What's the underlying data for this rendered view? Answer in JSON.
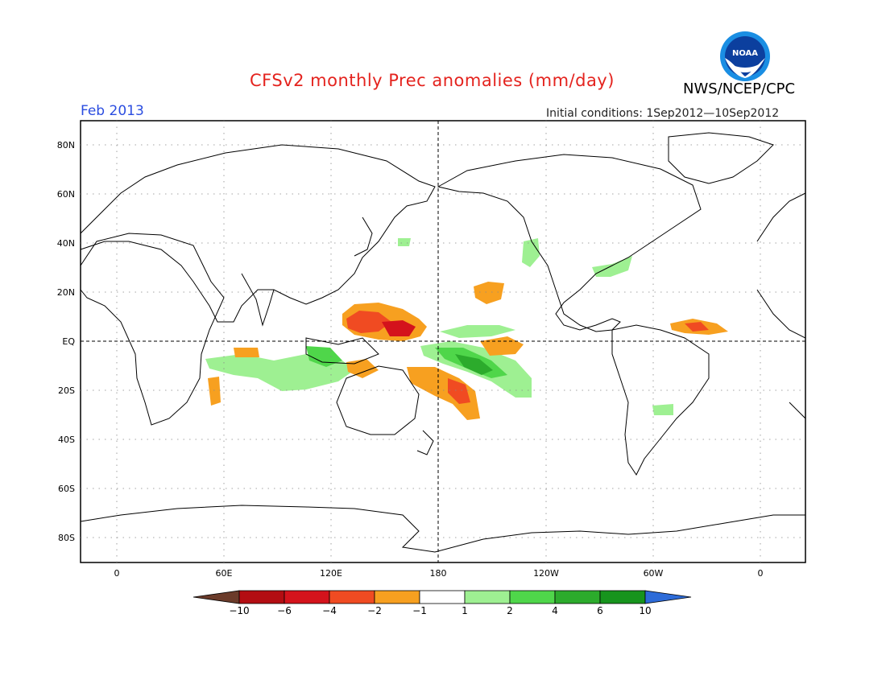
{
  "header": {
    "title": "CFSv2 monthly Prec anomalies (mm/day)",
    "agency": "NWS/NCEP/CPC",
    "period": "Feb 2013",
    "initial_conditions": "Initial conditions: 1Sep2012—10Sep2012",
    "logo_text": "NOAA"
  },
  "map": {
    "lat_labels": [
      "80N",
      "60N",
      "40N",
      "20N",
      "EQ",
      "20S",
      "40S",
      "60S",
      "80S"
    ],
    "lon_labels": [
      "0",
      "60E",
      "120E",
      "180",
      "120W",
      "60W",
      "0"
    ]
  },
  "colorbar": {
    "labels": [
      "−10",
      "−6",
      "−4",
      "−2",
      "−1",
      "1",
      "2",
      "4",
      "6",
      "10"
    ],
    "colors": [
      "#6b3b2a",
      "#b30d12",
      "#d4131c",
      "#f04b22",
      "#f7a020",
      "#ffffff",
      "#9ef092",
      "#4fd64a",
      "#2cab2c",
      "#17941d",
      "#2d6bd8"
    ]
  }
}
